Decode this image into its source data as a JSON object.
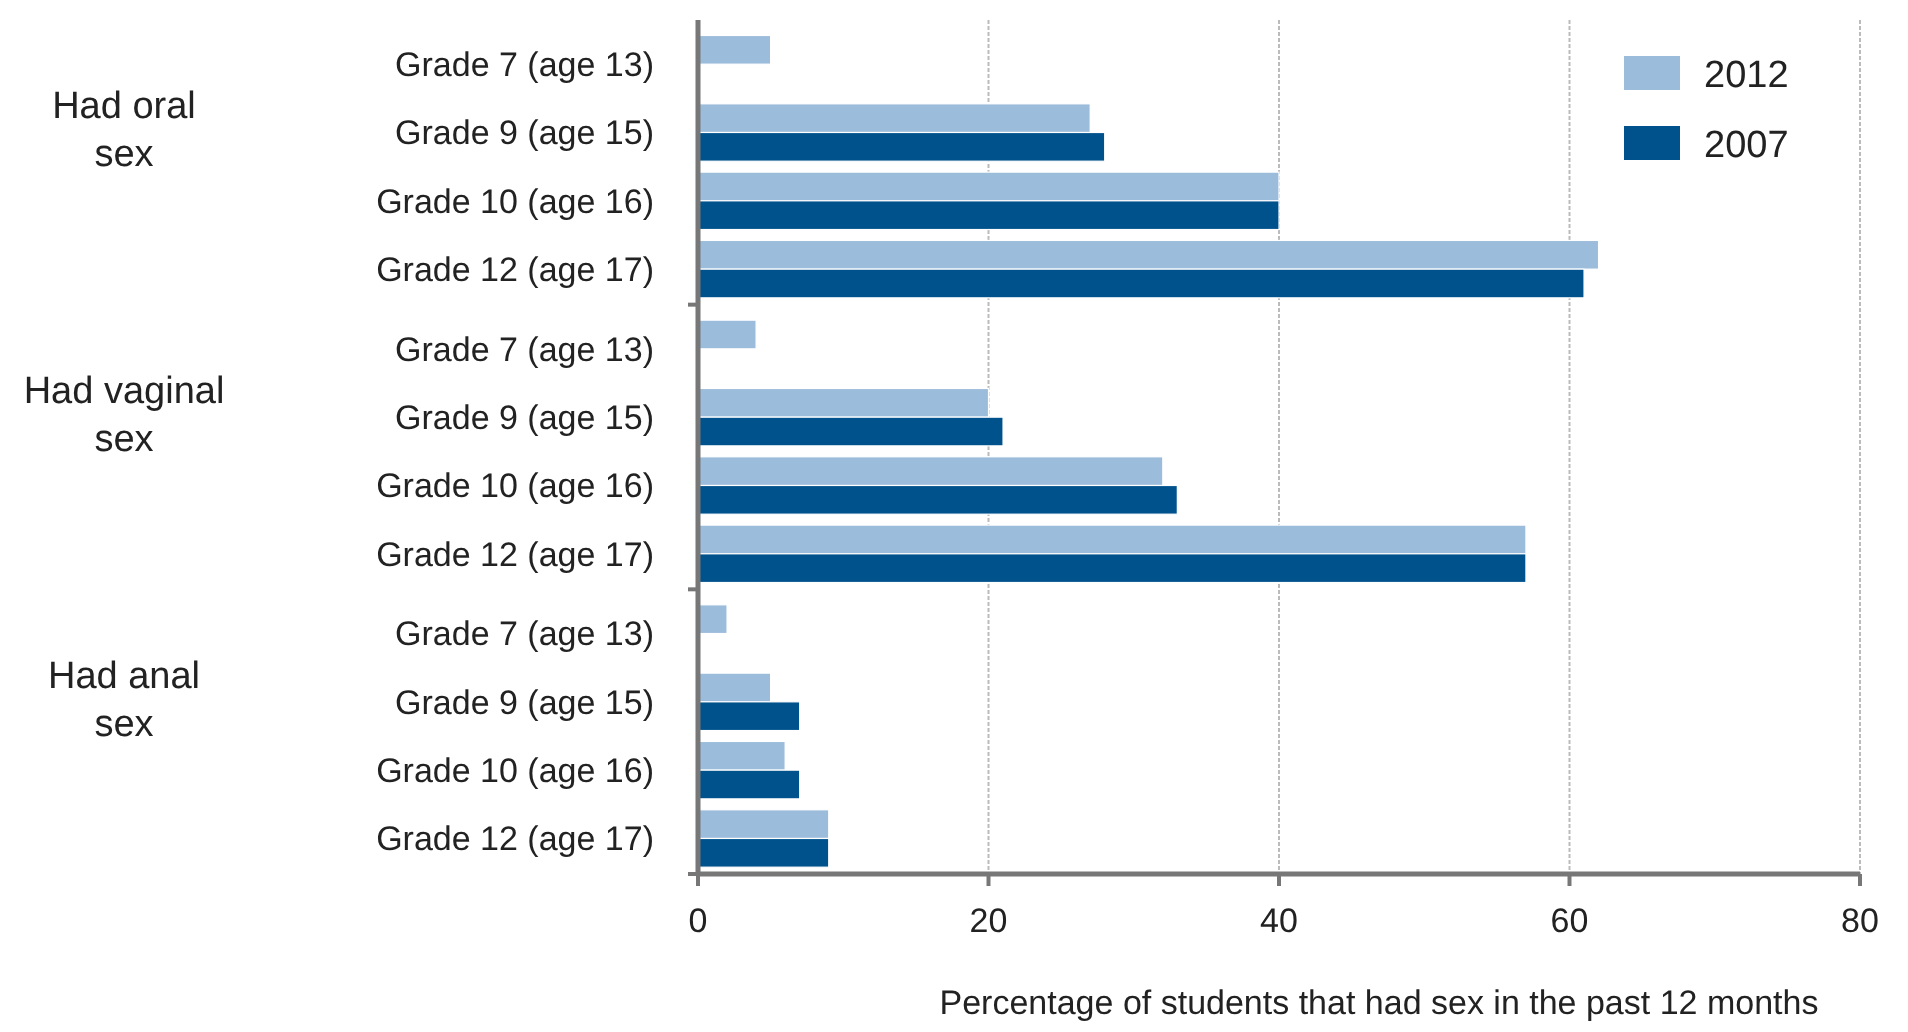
{
  "chart_data": {
    "type": "bar",
    "orientation": "horizontal",
    "xlabel": "Percentage of students that had sex in the past 12 months",
    "categories": [
      "Grade 7 (age 13)",
      "Grade 9 (age 15)",
      "Grade 10 (age 16)",
      "Grade 12 (age 17)",
      "Grade 7 (age 13)",
      "Grade 9 (age 15)",
      "Grade 10 (age 16)",
      "Grade 12 (age 17)",
      "Grade 7 (age 13)",
      "Grade 9 (age 15)",
      "Grade 10 (age 16)",
      "Grade 12 (age 17)"
    ],
    "annotations": [
      "Had oral sex",
      "Had vaginal sex",
      "Had anal sex"
    ],
    "series": [
      {
        "name": "2012",
        "color": "#9bbcdb",
        "values": [
          5,
          27,
          40,
          62,
          4,
          20,
          32,
          57,
          2,
          5,
          6,
          9
        ]
      },
      {
        "name": "2007",
        "color": "#00528c",
        "values": [
          null,
          28,
          40,
          61,
          null,
          21,
          33,
          57,
          null,
          7,
          7,
          9
        ]
      }
    ],
    "xlim": [
      0,
      80
    ],
    "xticks": [
      0,
      20,
      40,
      60,
      80
    ],
    "grid": "x",
    "legend": "top right"
  }
}
